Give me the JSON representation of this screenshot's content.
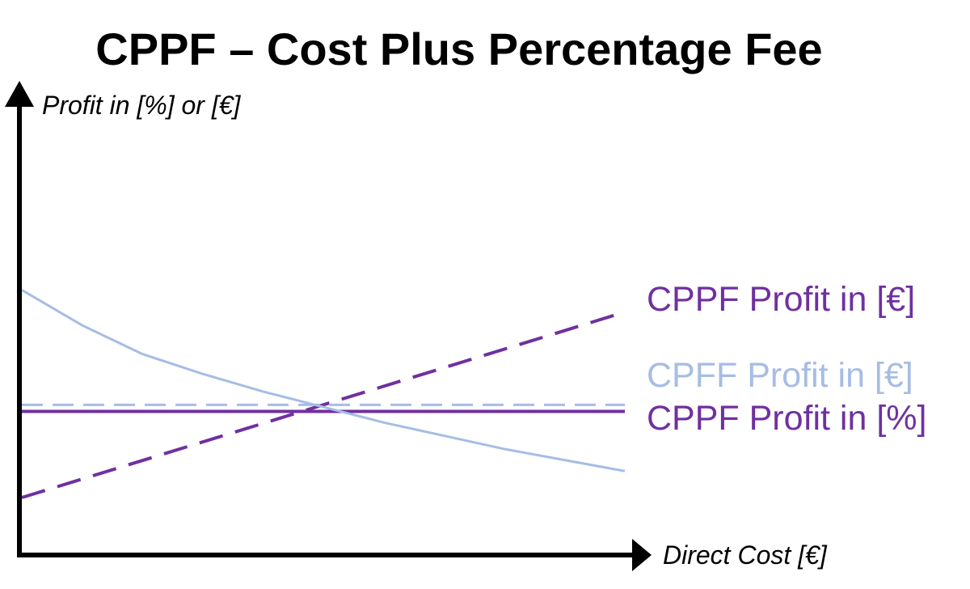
{
  "chart_data": {
    "type": "line",
    "title": "CPPF – Cost Plus Percentage Fee",
    "xlabel": "Direct Cost [€]",
    "ylabel": "Profit in [%] or [€]",
    "x": [
      0,
      1
    ],
    "ylim": [
      0,
      1
    ],
    "grid": false,
    "series": [
      {
        "name": "CPPF Profit in [€]",
        "style": "dashed",
        "color": "#7030a0",
        "points": [
          [
            0,
            0.13
          ],
          [
            1,
            0.55
          ]
        ]
      },
      {
        "name": "CPFF Profit in [€]",
        "style": "dashed",
        "color": "#a6bde4",
        "points": [
          [
            0,
            0.34
          ],
          [
            1,
            0.34
          ]
        ]
      },
      {
        "name": "CPPF Profit in [%]",
        "style": "solid",
        "color": "#7030a0",
        "points": [
          [
            0,
            0.325
          ],
          [
            1,
            0.325
          ]
        ]
      },
      {
        "name": "",
        "style": "solid",
        "color": "#a6bde4",
        "points": [
          [
            0,
            0.6
          ],
          [
            0.1,
            0.52
          ],
          [
            0.2,
            0.455
          ],
          [
            0.3,
            0.41
          ],
          [
            0.4,
            0.37
          ],
          [
            0.5,
            0.335
          ],
          [
            0.6,
            0.3
          ],
          [
            0.7,
            0.27
          ],
          [
            0.8,
            0.24
          ],
          [
            0.9,
            0.215
          ],
          [
            1,
            0.19
          ]
        ]
      }
    ]
  }
}
